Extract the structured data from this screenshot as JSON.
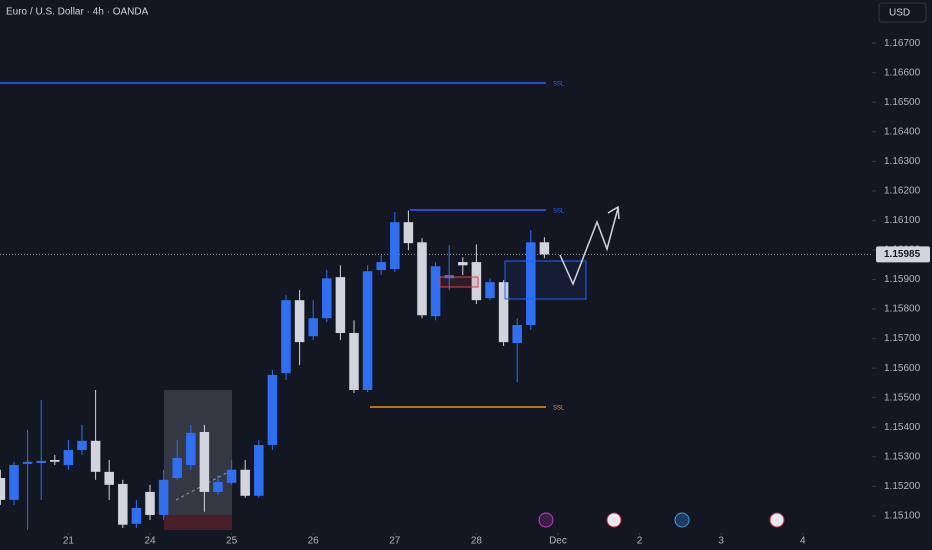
{
  "header": {
    "symbol": "Euro / U.S. Dollar · 4h · OANDA",
    "currency": "USD"
  },
  "chart_data": {
    "type": "candlestick",
    "up_color": "#2f6ff0",
    "down_color": "#d1d4dc",
    "x": [
      0,
      1,
      2,
      3,
      4,
      5,
      6,
      7,
      8,
      9,
      10,
      11,
      12,
      13,
      14,
      15,
      16,
      17,
      18,
      19,
      20,
      21,
      22,
      23,
      24,
      25,
      26,
      27,
      28,
      29,
      30,
      31,
      32,
      33,
      34,
      35,
      36,
      37,
      38,
      39,
      40
    ],
    "open": [
      1.15228,
      1.15154,
      1.15276,
      1.15279,
      1.15289,
      1.15272,
      1.15323,
      1.15354,
      1.15249,
      1.15208,
      1.15073,
      1.15181,
      1.15103,
      1.15228,
      1.15272,
      1.15384,
      1.15181,
      1.15212,
      1.15256,
      1.15168,
      1.1534,
      1.15583,
      1.1583,
      1.15708,
      1.15769,
      1.15908,
      1.15719,
      1.15526,
      1.15932,
      1.15935,
      1.16094,
      1.16026,
      1.15776,
      1.15904,
      1.15959,
      1.15959,
      1.15837,
      1.15891,
      1.15685,
      1.15746,
      1.16026
    ],
    "high": [
      1.15256,
      1.15283,
      1.15391,
      1.15492,
      1.15306,
      1.15357,
      1.15408,
      1.15526,
      1.15289,
      1.15222,
      1.15154,
      1.15205,
      1.15256,
      1.15357,
      1.15408,
      1.15408,
      1.15239,
      1.15289,
      1.15289,
      1.15357,
      1.15594,
      1.15847,
      1.15864,
      1.1583,
      1.15932,
      1.15948,
      1.15762,
      1.15948,
      1.15982,
      1.16128,
      1.16134,
      1.1604,
      1.15959,
      1.16016,
      1.15975,
      1.16019,
      1.15904,
      1.15898,
      1.15769,
      1.16067,
      1.16043
    ],
    "low": [
      1.15137,
      1.15137,
      1.15053,
      1.15154,
      1.15272,
      1.15256,
      1.15306,
      1.15222,
      1.15154,
      1.15059,
      1.15059,
      1.15086,
      1.15086,
      1.15222,
      1.15256,
      1.15114,
      1.15171,
      1.15205,
      1.15161,
      1.15161,
      1.15323,
      1.1556,
      1.1561,
      1.15695,
      1.15756,
      1.15695,
      1.15516,
      1.15519,
      1.15915,
      1.15925,
      1.15999,
      1.15769,
      1.15762,
      1.15864,
      1.15915,
      1.15817,
      1.1583,
      1.15675,
      1.15553,
      1.15729,
      1.15972
    ],
    "close": [
      1.15154,
      1.15272,
      1.15283,
      1.15286,
      1.15283,
      1.15323,
      1.15354,
      1.15249,
      1.15205,
      1.1507,
      1.15127,
      1.15103,
      1.15222,
      1.15296,
      1.15381,
      1.15181,
      1.15215,
      1.15256,
      1.15168,
      1.1534,
      1.15577,
      1.1583,
      1.15688,
      1.15769,
      1.15904,
      1.15719,
      1.15526,
      1.15928,
      1.15959,
      1.16094,
      1.16023,
      1.15779,
      1.15945,
      1.15915,
      1.15948,
      1.1583,
      1.15891,
      1.15688,
      1.15746,
      1.16026,
      1.15985
    ],
    "xlim": [
      -0.03,
      64.09
    ],
    "xticks": [
      {
        "value": 5,
        "label": "21"
      },
      {
        "value": 11,
        "label": "24"
      },
      {
        "value": 17,
        "label": "25"
      },
      {
        "value": 23,
        "label": "26"
      },
      {
        "value": 29,
        "label": "27"
      },
      {
        "value": 35,
        "label": "28"
      },
      {
        "value": 41,
        "label": "Dec"
      },
      {
        "value": 47,
        "label": "2"
      },
      {
        "value": 53,
        "label": "3"
      },
      {
        "value": 59,
        "label": "4"
      }
    ],
    "ylim": [
      1.15042,
      1.16846
    ],
    "yticks": [
      {
        "value": 1.151,
        "label": "1.15100"
      },
      {
        "value": 1.152,
        "label": "1.15200"
      },
      {
        "value": 1.153,
        "label": "1.15300"
      },
      {
        "value": 1.154,
        "label": "1.15400"
      },
      {
        "value": 1.155,
        "label": "1.15500"
      },
      {
        "value": 1.156,
        "label": "1.15600"
      },
      {
        "value": 1.157,
        "label": "1.15700"
      },
      {
        "value": 1.158,
        "label": "1.15800"
      },
      {
        "value": 1.159,
        "label": "1.15900"
      },
      {
        "value": 1.16,
        "label": "1.16000"
      },
      {
        "value": 1.161,
        "label": "1.16100"
      },
      {
        "value": 1.162,
        "label": "1.16200"
      },
      {
        "value": 1.163,
        "label": "1.16300"
      },
      {
        "value": 1.164,
        "label": "1.16400"
      },
      {
        "value": 1.165,
        "label": "1.16500"
      },
      {
        "value": 1.166,
        "label": "1.16600"
      },
      {
        "value": 1.167,
        "label": "1.16700"
      }
    ],
    "last_price": 1.15985,
    "annotations": [
      "SSL",
      "SSL",
      "SSL"
    ]
  }
}
